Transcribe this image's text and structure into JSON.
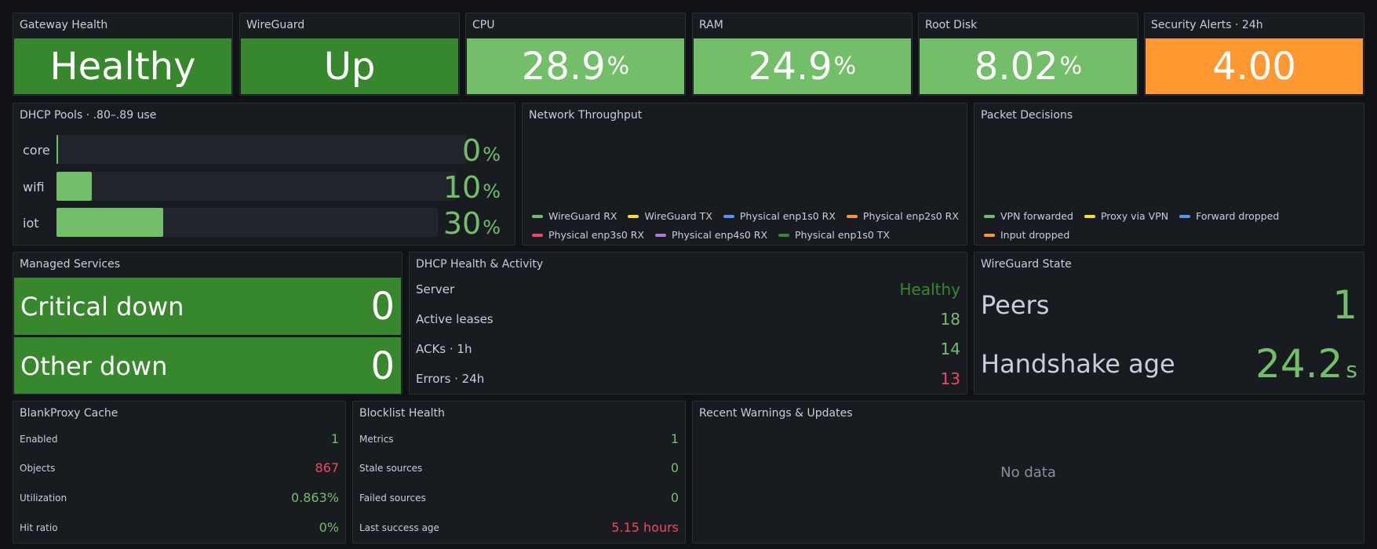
{
  "stats": {
    "gateway": {
      "title": "Gateway Health",
      "value": "Healthy"
    },
    "wireguard": {
      "title": "WireGuard",
      "value": "Up"
    },
    "cpu": {
      "title": "CPU",
      "value": "28.9",
      "unit": "%"
    },
    "ram": {
      "title": "RAM",
      "value": "24.9",
      "unit": "%"
    },
    "disk": {
      "title": "Root Disk",
      "value": "8.02",
      "unit": "%"
    },
    "alerts": {
      "title": "Security Alerts · 24h",
      "value": "4.00"
    }
  },
  "dhcp_pools": {
    "title": "DHCP Pools · .80–.89 use",
    "pools": [
      {
        "label": "core",
        "value": "0",
        "unit": "%",
        "fraction": 0.0
      },
      {
        "label": "wifi",
        "value": "10",
        "unit": "%",
        "fraction": 0.1
      },
      {
        "label": "iot",
        "value": "30",
        "unit": "%",
        "fraction": 0.3
      }
    ]
  },
  "throughput": {
    "title": "Network Throughput",
    "legend": [
      {
        "label": "WireGuard RX",
        "color": "#73bf69"
      },
      {
        "label": "WireGuard TX",
        "color": "#fade2a"
      },
      {
        "label": "Physical enp1s0 RX",
        "color": "#5794f2"
      },
      {
        "label": "Physical enp2s0 RX",
        "color": "#ff9830"
      },
      {
        "label": "Physical enp3s0 RX",
        "color": "#f2495c"
      },
      {
        "label": "Physical enp4s0 RX",
        "color": "#b877d9"
      },
      {
        "label": "Physical enp1s0 TX",
        "color": "#37872d"
      }
    ]
  },
  "packets": {
    "title": "Packet Decisions",
    "legend": [
      {
        "label": "VPN forwarded",
        "color": "#73bf69"
      },
      {
        "label": "Proxy via VPN",
        "color": "#fade2a"
      },
      {
        "label": "Forward dropped",
        "color": "#5794f2"
      },
      {
        "label": "Input dropped",
        "color": "#ff9830"
      }
    ]
  },
  "services": {
    "title": "Managed Services",
    "rows": [
      {
        "label": "Critical down",
        "value": "0"
      },
      {
        "label": "Other down",
        "value": "0"
      }
    ]
  },
  "dhcp_health": {
    "title": "DHCP Health & Activity",
    "rows": [
      {
        "label": "Server",
        "value": "Healthy"
      },
      {
        "label": "Active leases",
        "value": "18"
      },
      {
        "label": "ACKs · 1h",
        "value": "14"
      },
      {
        "label": "Errors · 24h",
        "value": "13"
      }
    ]
  },
  "wg_state": {
    "title": "WireGuard State",
    "peers": {
      "label": "Peers",
      "value": "1"
    },
    "handshake": {
      "label": "Handshake age",
      "value": "24.2",
      "unit": "s"
    }
  },
  "blankproxy": {
    "title": "BlankProxy Cache",
    "rows": [
      {
        "label": "Enabled",
        "value": "1"
      },
      {
        "label": "Objects",
        "value": "867"
      },
      {
        "label": "Utilization",
        "value": "0.863%"
      },
      {
        "label": "Hit ratio",
        "value": "0%"
      }
    ]
  },
  "blocklist": {
    "title": "Blocklist Health",
    "rows": [
      {
        "label": "Metrics",
        "value": "1"
      },
      {
        "label": "Stale sources",
        "value": "0"
      },
      {
        "label": "Failed sources",
        "value": "0"
      },
      {
        "label": "Last success age",
        "value": "5.15 hours"
      }
    ]
  },
  "warnings": {
    "title": "Recent Warnings & Updates",
    "empty": "No data"
  }
}
